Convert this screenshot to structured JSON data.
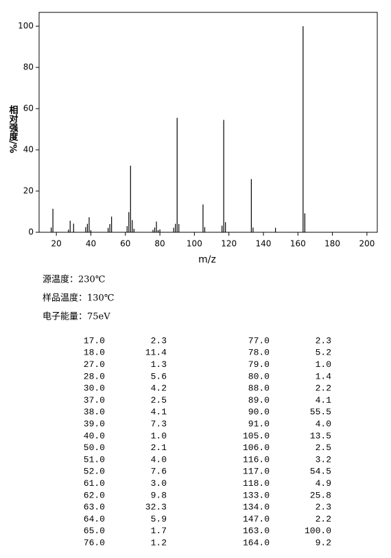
{
  "chart_data": {
    "type": "stem",
    "x_label": "m/z",
    "y_label": "相对强度/%",
    "xlim": [
      10,
      206
    ],
    "ylim": [
      0,
      106.7
    ],
    "xticks": [
      20,
      40,
      60,
      80,
      100,
      120,
      140,
      160,
      180,
      200
    ],
    "yticks": [
      0,
      20,
      40,
      60,
      80,
      100
    ],
    "color": "#000000",
    "x": [
      17,
      18,
      27,
      28,
      30,
      37,
      38,
      39,
      40,
      50,
      51,
      52,
      61,
      62,
      63,
      64,
      65,
      76,
      77,
      78,
      79,
      80,
      88,
      89,
      90,
      91,
      105,
      106,
      116,
      117,
      118,
      133,
      134,
      147,
      163,
      164
    ],
    "x_labels": [
      "17.0",
      "18.0",
      "27.0",
      "28.0",
      "30.0",
      "37.0",
      "38.0",
      "39.0",
      "40.0",
      "50.0",
      "51.0",
      "52.0",
      "61.0",
      "62.0",
      "63.0",
      "64.0",
      "65.0",
      "76.0",
      "77.0",
      "78.0",
      "79.0",
      "80.0",
      "88.0",
      "89.0",
      "90.0",
      "91.0",
      "105.0",
      "106.0",
      "116.0",
      "117.0",
      "118.0",
      "133.0",
      "134.0",
      "147.0",
      "163.0",
      "164.0"
    ],
    "values": [
      2.3,
      11.4,
      1.3,
      5.6,
      4.2,
      2.5,
      4.1,
      7.3,
      1.0,
      2.1,
      4.0,
      7.6,
      3.0,
      9.8,
      32.3,
      5.9,
      1.7,
      1.2,
      2.3,
      5.2,
      1.0,
      1.4,
      2.2,
      4.1,
      55.5,
      4.0,
      13.5,
      2.5,
      3.2,
      54.5,
      4.9,
      25.8,
      2.3,
      2.2,
      100.0,
      9.2
    ],
    "value_labels": [
      "2.3",
      "11.4",
      "1.3",
      "5.6",
      "4.2",
      "2.5",
      "4.1",
      "7.3",
      "1.0",
      "2.1",
      "4.0",
      "7.6",
      "3.0",
      "9.8",
      "32.3",
      "5.9",
      "1.7",
      "1.2",
      "2.3",
      "5.2",
      "1.0",
      "1.4",
      "2.2",
      "4.1",
      "55.5",
      "4.0",
      "13.5",
      "2.5",
      "3.2",
      "54.5",
      "4.9",
      "25.8",
      "2.3",
      "2.2",
      "100.0",
      "9.2"
    ]
  },
  "conditions": [
    "源温度：230℃",
    "样品温度：130℃",
    "电子能量：75eV"
  ]
}
